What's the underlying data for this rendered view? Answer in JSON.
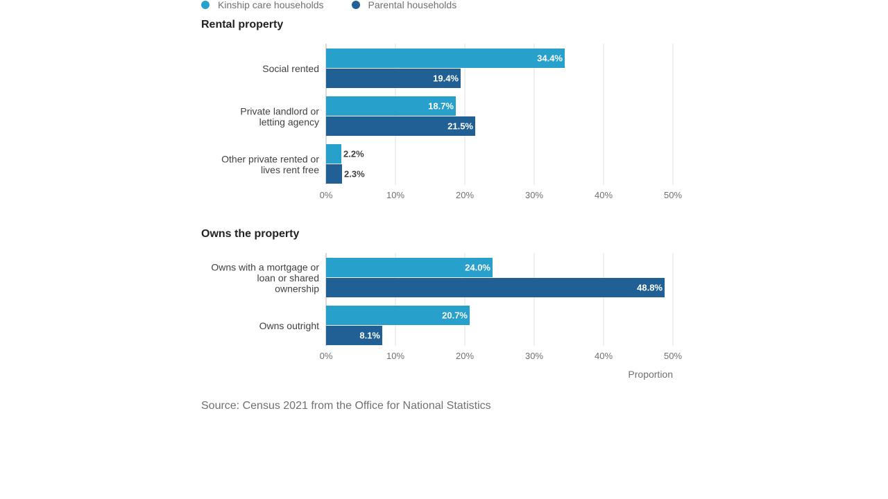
{
  "legend": [
    {
      "label": "Kinship care households",
      "color": "#27a0cc"
    },
    {
      "label": "Parental households",
      "color": "#206095"
    }
  ],
  "source": "Source: Census 2021 from the Office for National Statistics",
  "chart_data": [
    {
      "type": "bar",
      "orientation": "horizontal",
      "title": "Rental property",
      "categories": [
        "Social rented",
        "Private landlord or letting agency",
        "Other private rented or lives rent free"
      ],
      "category_lines": [
        [
          "Social rented"
        ],
        [
          "Private landlord or",
          "letting agency"
        ],
        [
          "Other private rented or",
          "lives rent free"
        ]
      ],
      "series": [
        {
          "name": "Kinship care households",
          "values": [
            34.4,
            18.7,
            2.2
          ],
          "color": "#27a0cc"
        },
        {
          "name": "Parental households",
          "values": [
            19.4,
            21.5,
            2.3
          ],
          "color": "#206095"
        }
      ],
      "xlim": [
        0,
        50
      ],
      "ticks": [
        "0%",
        "10%",
        "20%",
        "30%",
        "40%",
        "50%"
      ],
      "grid": true,
      "xlabel": ""
    },
    {
      "type": "bar",
      "orientation": "horizontal",
      "title": "Owns the property",
      "categories": [
        "Owns with a mortgage or loan or shared ownership",
        "Owns outright"
      ],
      "category_lines": [
        [
          "Owns with a mortgage or",
          "loan or shared",
          "ownership"
        ],
        [
          "Owns outright"
        ]
      ],
      "series": [
        {
          "name": "Kinship care households",
          "values": [
            24.0,
            20.7
          ],
          "color": "#27a0cc"
        },
        {
          "name": "Parental households",
          "values": [
            48.8,
            8.1
          ],
          "color": "#206095"
        }
      ],
      "xlim": [
        0,
        50
      ],
      "ticks": [
        "0%",
        "10%",
        "20%",
        "30%",
        "40%",
        "50%"
      ],
      "grid": true,
      "xlabel": "Proportion"
    }
  ]
}
